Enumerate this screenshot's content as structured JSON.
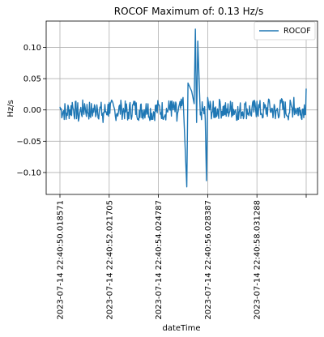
{
  "chart_data": {
    "type": "line",
    "title": "ROCOF Maximum of: 0.13 Hz/s",
    "xlabel": "dateTime",
    "ylabel": "Hz/s",
    "ylim": [
      -0.135,
      0.142
    ],
    "yticks": [
      0.1,
      0.05,
      0.0,
      -0.05,
      -0.1
    ],
    "ytick_labels": [
      "0.10",
      "0.05",
      "0.00",
      "−0.05",
      "−0.10"
    ],
    "xtick_labels": [
      "2023-07-14 22:40:50.018571",
      "2023-07-14 22:40:52.021705",
      "2023-07-14 22:40:54.024787",
      "2023-07-14 22:40:56.028387",
      "2023-07-14 22:40:58.031288",
      ""
    ],
    "grid": true,
    "legend_position": "top-right",
    "series": [
      {
        "name": "ROCOF",
        "color": "#1f77b4",
        "x_range_seconds": [
          0,
          10
        ],
        "points_approx": [
          [
            0.0,
            0.005
          ],
          [
            0.25,
            -0.015
          ],
          [
            0.5,
            0.012
          ],
          [
            0.75,
            -0.018
          ],
          [
            1.0,
            0.01
          ],
          [
            1.25,
            -0.012
          ],
          [
            1.5,
            0.008
          ],
          [
            1.75,
            -0.02
          ],
          [
            2.0,
            0.012
          ],
          [
            2.25,
            -0.01
          ],
          [
            2.5,
            0.006
          ],
          [
            2.75,
            -0.016
          ],
          [
            3.0,
            0.014
          ],
          [
            3.25,
            -0.012
          ],
          [
            3.5,
            0.01
          ],
          [
            3.75,
            -0.015
          ],
          [
            4.0,
            0.008
          ],
          [
            4.25,
            -0.01
          ],
          [
            4.5,
            0.014
          ],
          [
            4.75,
            -0.018
          ],
          [
            5.0,
            0.02
          ],
          [
            5.15,
            -0.123
          ],
          [
            5.2,
            0.043
          ],
          [
            5.35,
            0.03
          ],
          [
            5.45,
            0.01
          ],
          [
            5.5,
            0.129
          ],
          [
            5.55,
            -0.02
          ],
          [
            5.6,
            0.11
          ],
          [
            5.7,
            -0.008
          ],
          [
            5.9,
            -0.015
          ],
          [
            5.95,
            -0.113
          ],
          [
            6.0,
            0.02
          ],
          [
            6.25,
            -0.012
          ],
          [
            6.5,
            0.014
          ],
          [
            6.75,
            -0.01
          ],
          [
            7.0,
            0.012
          ],
          [
            7.25,
            -0.015
          ],
          [
            7.5,
            0.01
          ],
          [
            7.75,
            -0.008
          ],
          [
            8.0,
            0.014
          ],
          [
            8.25,
            -0.012
          ],
          [
            8.5,
            0.016
          ],
          [
            8.75,
            -0.014
          ],
          [
            9.0,
            0.018
          ],
          [
            9.25,
            -0.01
          ],
          [
            9.5,
            0.02
          ],
          [
            9.75,
            -0.008
          ],
          [
            10.0,
            0.034
          ]
        ]
      }
    ]
  }
}
